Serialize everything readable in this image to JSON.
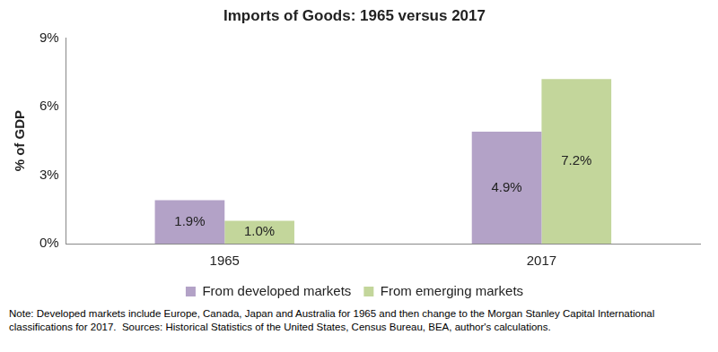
{
  "chart_data": {
    "type": "bar",
    "title": "Imports of Goods: 1965 versus 2017",
    "y_label": "% of GDP",
    "categories": [
      "1965",
      "2017"
    ],
    "series": [
      {
        "name": "From developed markets",
        "color": "#b3a2c7",
        "values": [
          1.9,
          4.9
        ],
        "value_labels": [
          "1.9%",
          "4.9%"
        ]
      },
      {
        "name": "From emerging markets",
        "color": "#c3d69b",
        "values": [
          1.0,
          7.2
        ],
        "value_labels": [
          "1.0%",
          "7.2%"
        ]
      }
    ],
    "ylim": [
      0,
      9
    ],
    "yticks": [
      {
        "value": 0,
        "label": "0%"
      },
      {
        "value": 3,
        "label": "3%"
      },
      {
        "value": 6,
        "label": "6%"
      },
      {
        "value": 9,
        "label": "9%"
      }
    ],
    "grid": false,
    "legend": "bottom",
    "data_labels": true,
    "note": "Note: Developed markets include Europe, Canada, Japan and Australia for 1965 and then change to the Morgan Stanley Capital International classifications for 2017.  Sources: Historical Statistics of the United States, Census Bureau, BEA, author's calculations."
  }
}
